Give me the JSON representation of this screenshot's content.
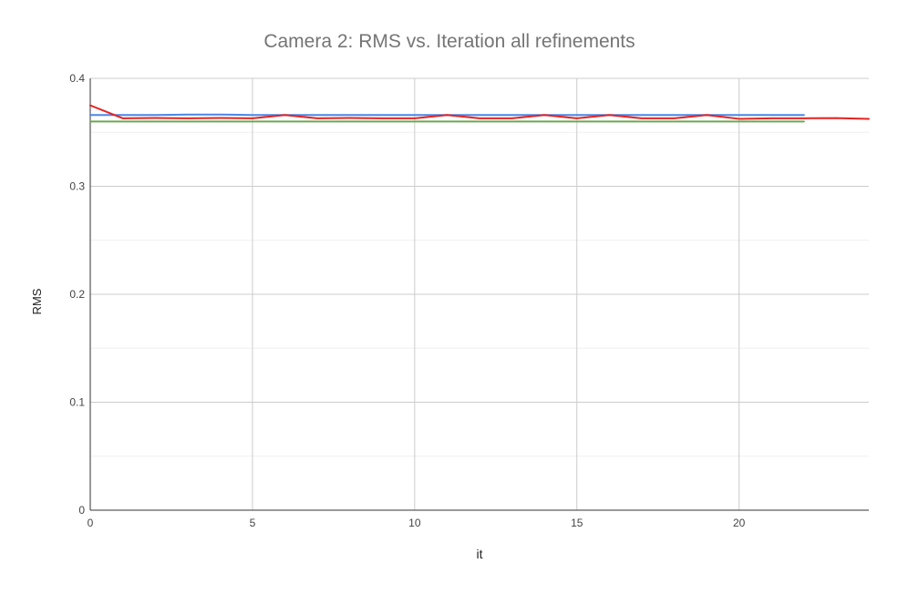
{
  "chart_data": {
    "type": "line",
    "title": "Camera 2: RMS vs. Iteration all refinements",
    "xlabel": "it",
    "ylabel": "RMS",
    "xlim": [
      0,
      24
    ],
    "ylim": [
      0,
      0.4
    ],
    "x_ticks": [
      0,
      5,
      10,
      15,
      20
    ],
    "x_tick_labels": [
      "0",
      "5",
      "10",
      "15",
      "20"
    ],
    "y_ticks": [
      0,
      0.1,
      0.2,
      0.3,
      0.4
    ],
    "y_tick_labels": [
      "0",
      "0.1",
      "0.2",
      "0.3",
      "0.4"
    ],
    "grid": true,
    "series": [
      {
        "color": "#4a86e8",
        "x": [
          0,
          1,
          2,
          3,
          4,
          5,
          6,
          7,
          8,
          9,
          10,
          11,
          12,
          13,
          14,
          15,
          16,
          17,
          18,
          19,
          20,
          21,
          22
        ],
        "values": [
          0.366,
          0.366,
          0.366,
          0.3665,
          0.3665,
          0.366,
          0.366,
          0.366,
          0.366,
          0.366,
          0.366,
          0.366,
          0.366,
          0.366,
          0.366,
          0.366,
          0.366,
          0.366,
          0.366,
          0.366,
          0.366,
          0.366,
          0.366
        ]
      },
      {
        "color": "#6aa84f",
        "x": [
          0,
          1,
          2,
          3,
          4,
          5,
          6,
          7,
          8,
          9,
          10,
          11,
          12,
          13,
          14,
          15,
          16,
          17,
          18,
          19,
          20,
          21,
          22
        ],
        "values": [
          0.36,
          0.36,
          0.36,
          0.36,
          0.36,
          0.36,
          0.36,
          0.36,
          0.36,
          0.36,
          0.36,
          0.36,
          0.36,
          0.36,
          0.36,
          0.36,
          0.36,
          0.36,
          0.36,
          0.36,
          0.36,
          0.36,
          0.36
        ]
      },
      {
        "color": "#e52222",
        "x": [
          0,
          1,
          2,
          3,
          4,
          5,
          6,
          7,
          8,
          9,
          10,
          11,
          12,
          13,
          14,
          15,
          16,
          17,
          18,
          19,
          20,
          21,
          22,
          23,
          24
        ],
        "values": [
          0.375,
          0.363,
          0.3633,
          0.363,
          0.3633,
          0.363,
          0.366,
          0.363,
          0.3633,
          0.363,
          0.363,
          0.366,
          0.363,
          0.363,
          0.366,
          0.363,
          0.366,
          0.363,
          0.363,
          0.366,
          0.3625,
          0.363,
          0.363,
          0.3632,
          0.3625
        ]
      }
    ]
  }
}
